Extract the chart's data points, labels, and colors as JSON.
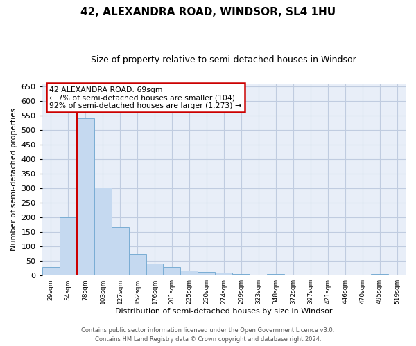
{
  "title": "42, ALEXANDRA ROAD, WINDSOR, SL4 1HU",
  "subtitle": "Size of property relative to semi-detached houses in Windsor",
  "xlabel": "Distribution of semi-detached houses by size in Windsor",
  "ylabel": "Number of semi-detached properties",
  "bar_labels": [
    "29sqm",
    "54sqm",
    "78sqm",
    "103sqm",
    "127sqm",
    "152sqm",
    "176sqm",
    "201sqm",
    "225sqm",
    "250sqm",
    "274sqm",
    "299sqm",
    "323sqm",
    "348sqm",
    "372sqm",
    "397sqm",
    "421sqm",
    "446sqm",
    "470sqm",
    "495sqm",
    "519sqm"
  ],
  "bar_values": [
    30,
    200,
    540,
    303,
    168,
    73,
    42,
    30,
    18,
    13,
    10,
    5,
    0,
    5,
    0,
    0,
    0,
    0,
    0,
    5,
    0
  ],
  "bar_color": "#c5d9f0",
  "bar_edge_color": "#7aadd4",
  "ylim": [
    0,
    660
  ],
  "yticks": [
    0,
    50,
    100,
    150,
    200,
    250,
    300,
    350,
    400,
    450,
    500,
    550,
    600,
    650
  ],
  "red_line_index": 2,
  "annotation_title": "42 ALEXANDRA ROAD: 69sqm",
  "annotation_line1": "← 7% of semi-detached houses are smaller (104)",
  "annotation_line2": "92% of semi-detached houses are larger (1,273) →",
  "annotation_box_color": "#ffffff",
  "annotation_border_color": "#cc0000",
  "footer_line1": "Contains HM Land Registry data © Crown copyright and database right 2024.",
  "footer_line2": "Contains public sector information licensed under the Open Government Licence v3.0.",
  "background_color": "#ffffff",
  "plot_bg_color": "#e8eef8",
  "grid_color": "#c0cce0",
  "title_fontsize": 11,
  "subtitle_fontsize": 9
}
